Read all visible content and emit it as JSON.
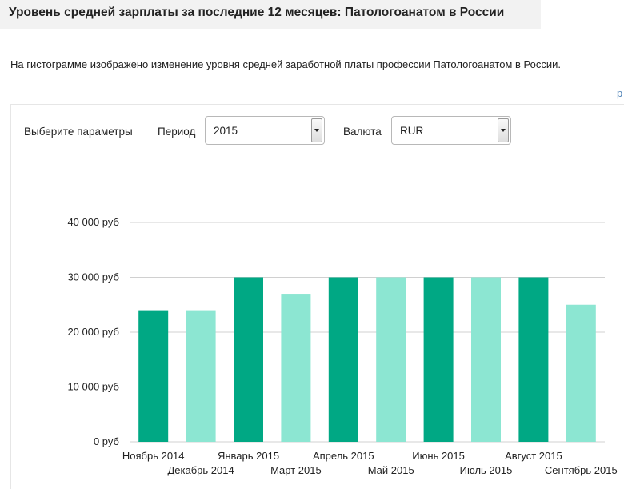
{
  "header": {
    "title": "Уровень средней зарплаты за последние 12 месяцев: Патологоанатом в России"
  },
  "description": "На гистограмме изображено изменение уровня средней заработной платы профессии Патологоанатом в России.",
  "edge_text": "р",
  "controls": {
    "params_label": "Выберите параметры",
    "period_label": "Период",
    "period_value": "2015",
    "currency_label": "Валюта",
    "currency_value": "RUR"
  },
  "chart_data": {
    "type": "bar",
    "title": "",
    "xlabel": "",
    "ylabel": "",
    "ylim": [
      0,
      40000
    ],
    "yticks": [
      {
        "value": 0,
        "label": "0 руб"
      },
      {
        "value": 10000,
        "label": "10 000 руб"
      },
      {
        "value": 20000,
        "label": "20 000 руб"
      },
      {
        "value": 30000,
        "label": "30 000 руб"
      },
      {
        "value": 40000,
        "label": "40 000 руб"
      }
    ],
    "grid": true,
    "colors": [
      "#00a884",
      "#8ce6d2"
    ],
    "categories": [
      "Ноябрь 2014",
      "Декабрь 2014",
      "Январь 2015",
      "Март 2015",
      "Апрель 2015",
      "Май 2015",
      "Июнь 2015",
      "Июль 2015",
      "Август 2015",
      "Сентябрь 2015"
    ],
    "values": [
      24000,
      24000,
      30000,
      27000,
      30000,
      30000,
      30000,
      30000,
      30000,
      25000
    ]
  }
}
